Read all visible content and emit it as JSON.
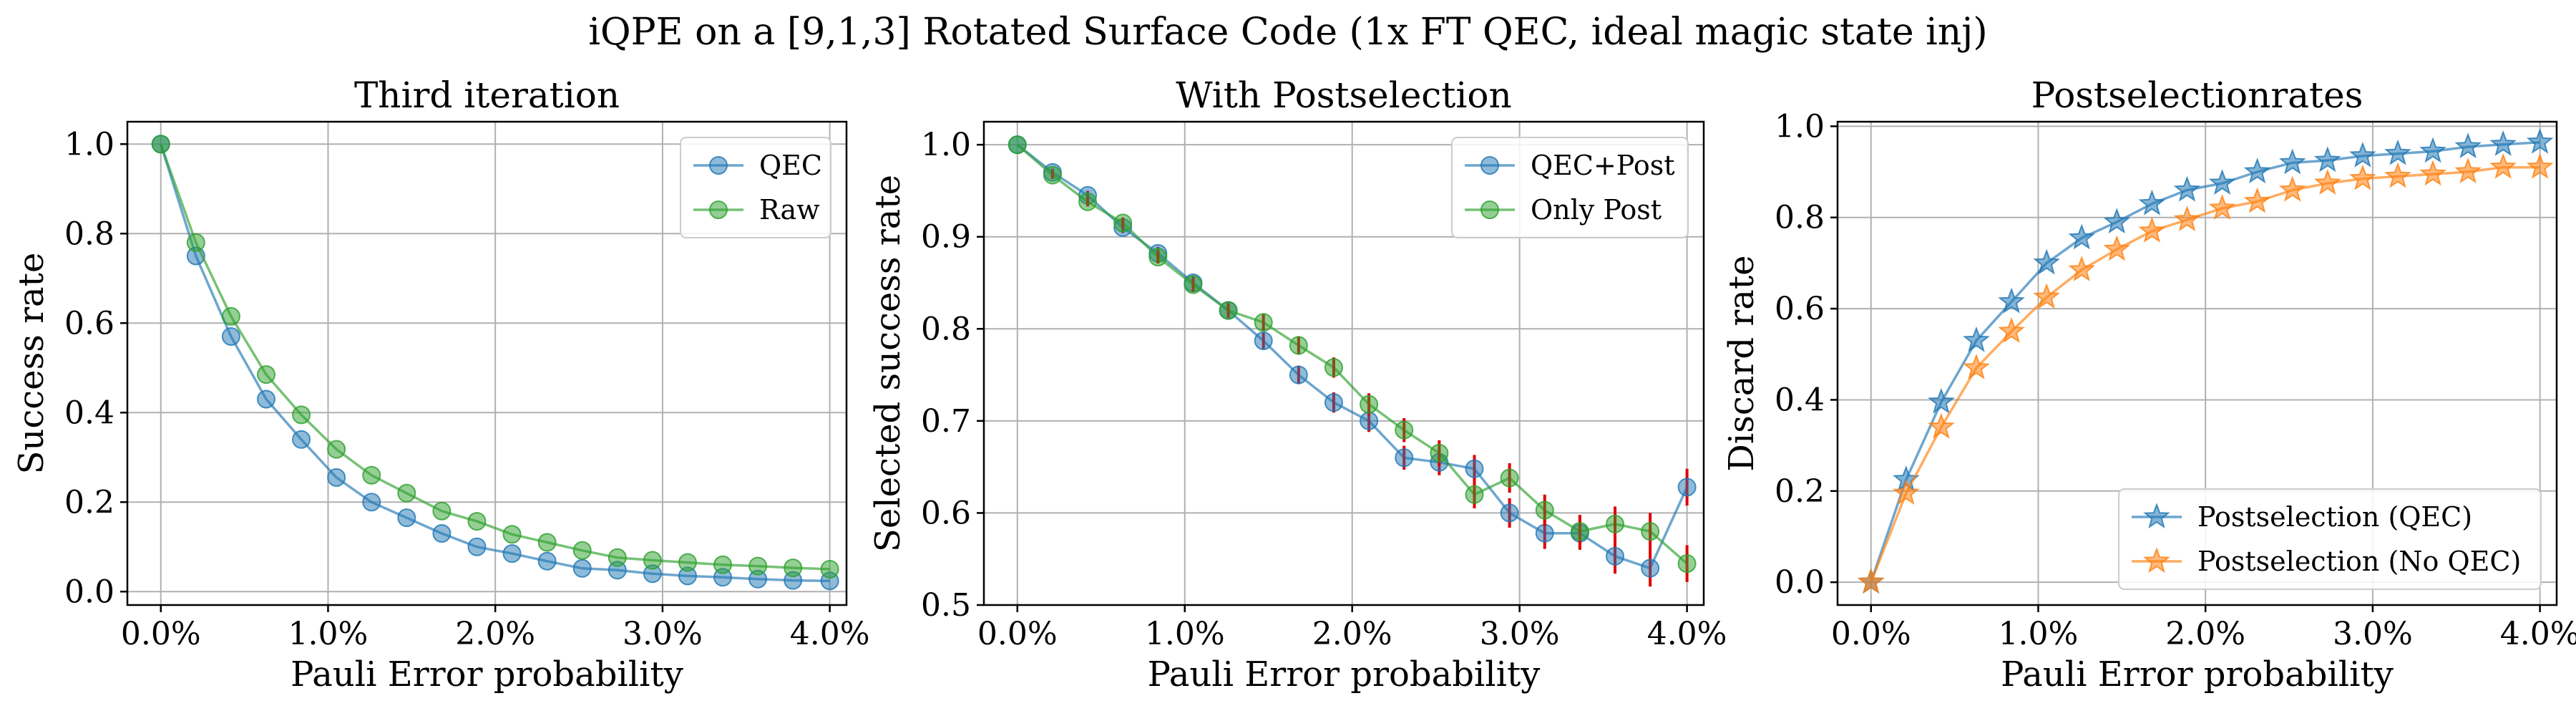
{
  "figure": {
    "suptitle": "iQPE on a [9,1,3] Rotated Surface Code (1x FT QEC, ideal magic state inj)"
  },
  "colors": {
    "blue": "#1f77b4",
    "green": "#2ca02c",
    "orange": "#ff7f0e",
    "errorbar": "#e00000",
    "grid": "#b0b0b0"
  },
  "chart_data": [
    {
      "type": "line",
      "title": "Third iteration",
      "xlabel": "Pauli Error probability",
      "ylabel": "Success rate",
      "xlim": [
        -0.2,
        4.1
      ],
      "ylim": [
        -0.03,
        1.05
      ],
      "xticks": [
        0,
        1,
        2,
        3,
        4
      ],
      "xticklabels": [
        "0.0%",
        "1.0%",
        "2.0%",
        "3.0%",
        "4.0%"
      ],
      "yticks": [
        0.0,
        0.2,
        0.4,
        0.6,
        0.8,
        1.0
      ],
      "yticklabels": [
        "0.0",
        "0.2",
        "0.4",
        "0.6",
        "0.8",
        "1.0"
      ],
      "legend": "top-right",
      "x": [
        0,
        0.21,
        0.42,
        0.63,
        0.84,
        1.05,
        1.26,
        1.47,
        1.68,
        1.89,
        2.1,
        2.31,
        2.52,
        2.73,
        2.94,
        3.15,
        3.36,
        3.57,
        3.78,
        4.0
      ],
      "series": [
        {
          "name": "QEC",
          "color": "blue",
          "marker": "circle",
          "values": [
            1.0,
            0.75,
            0.57,
            0.43,
            0.34,
            0.255,
            0.2,
            0.165,
            0.13,
            0.1,
            0.085,
            0.068,
            0.052,
            0.048,
            0.04,
            0.035,
            0.032,
            0.028,
            0.025,
            0.024
          ]
        },
        {
          "name": "Raw",
          "color": "green",
          "marker": "circle",
          "values": [
            1.0,
            0.78,
            0.615,
            0.485,
            0.395,
            0.318,
            0.26,
            0.22,
            0.18,
            0.157,
            0.128,
            0.11,
            0.092,
            0.076,
            0.07,
            0.065,
            0.06,
            0.057,
            0.053,
            0.05
          ]
        }
      ]
    },
    {
      "type": "line",
      "title": "With Postselection",
      "xlabel": "Pauli Error probability",
      "ylabel": "Selected success rate",
      "xlim": [
        -0.2,
        4.1
      ],
      "ylim": [
        0.5,
        1.025
      ],
      "xticks": [
        0,
        1,
        2,
        3,
        4
      ],
      "xticklabels": [
        "0.0%",
        "1.0%",
        "2.0%",
        "3.0%",
        "4.0%"
      ],
      "yticks": [
        0.5,
        0.6,
        0.7,
        0.8,
        0.9,
        1.0
      ],
      "yticklabels": [
        "0.5",
        "0.6",
        "0.7",
        "0.8",
        "0.9",
        "1.0"
      ],
      "legend": "top-right",
      "errorbars": true,
      "x": [
        0,
        0.21,
        0.42,
        0.63,
        0.84,
        1.05,
        1.26,
        1.47,
        1.68,
        1.89,
        2.1,
        2.31,
        2.52,
        2.73,
        2.94,
        3.15,
        3.36,
        3.57,
        3.78,
        4.0
      ],
      "series": [
        {
          "name": "QEC+Post",
          "color": "blue",
          "marker": "circle",
          "values": [
            1.0,
            0.97,
            0.945,
            0.91,
            0.882,
            0.85,
            0.82,
            0.787,
            0.75,
            0.72,
            0.7,
            0.66,
            0.655,
            0.648,
            0.6,
            0.578,
            0.578,
            0.553,
            0.54,
            0.628
          ],
          "errors": [
            0.0,
            0.004,
            0.005,
            0.006,
            0.007,
            0.008,
            0.008,
            0.009,
            0.01,
            0.011,
            0.012,
            0.013,
            0.014,
            0.015,
            0.016,
            0.017,
            0.018,
            0.019,
            0.02,
            0.02
          ]
        },
        {
          "name": "Only Post",
          "color": "green",
          "marker": "circle",
          "values": [
            1.0,
            0.967,
            0.938,
            0.915,
            0.878,
            0.848,
            0.82,
            0.807,
            0.782,
            0.758,
            0.718,
            0.69,
            0.665,
            0.62,
            0.638,
            0.603,
            0.58,
            0.588,
            0.58,
            0.545
          ],
          "errors": [
            0.0,
            0.004,
            0.005,
            0.006,
            0.007,
            0.008,
            0.008,
            0.009,
            0.01,
            0.011,
            0.012,
            0.013,
            0.014,
            0.015,
            0.016,
            0.017,
            0.018,
            0.019,
            0.02,
            0.02
          ]
        }
      ]
    },
    {
      "type": "line",
      "title": "Postselectionrates",
      "xlabel": "Pauli Error probability",
      "ylabel": "Discard rate",
      "xlim": [
        -0.2,
        4.1
      ],
      "ylim": [
        -0.05,
        1.01
      ],
      "xticks": [
        0,
        1,
        2,
        3,
        4
      ],
      "xticklabels": [
        "0.0%",
        "1.0%",
        "2.0%",
        "3.0%",
        "4.0%"
      ],
      "yticks": [
        0.0,
        0.2,
        0.4,
        0.6,
        0.8,
        1.0
      ],
      "yticklabels": [
        "0.0",
        "0.2",
        "0.4",
        "0.6",
        "0.8",
        "1.0"
      ],
      "legend": "bottom-right",
      "x": [
        0,
        0.21,
        0.42,
        0.63,
        0.84,
        1.05,
        1.26,
        1.47,
        1.68,
        1.89,
        2.1,
        2.31,
        2.52,
        2.73,
        2.94,
        3.15,
        3.36,
        3.57,
        3.78,
        4.0
      ],
      "series": [
        {
          "name": "Postselection (QEC)",
          "color": "blue",
          "marker": "star",
          "values": [
            0.0,
            0.225,
            0.395,
            0.53,
            0.615,
            0.7,
            0.755,
            0.79,
            0.83,
            0.86,
            0.875,
            0.9,
            0.92,
            0.925,
            0.935,
            0.94,
            0.945,
            0.955,
            0.96,
            0.965
          ]
        },
        {
          "name": "Postselection (No QEC)",
          "color": "orange",
          "marker": "star",
          "values": [
            0.0,
            0.195,
            0.34,
            0.47,
            0.55,
            0.625,
            0.685,
            0.73,
            0.77,
            0.795,
            0.82,
            0.835,
            0.86,
            0.875,
            0.885,
            0.89,
            0.895,
            0.9,
            0.91,
            0.91
          ]
        }
      ]
    }
  ]
}
